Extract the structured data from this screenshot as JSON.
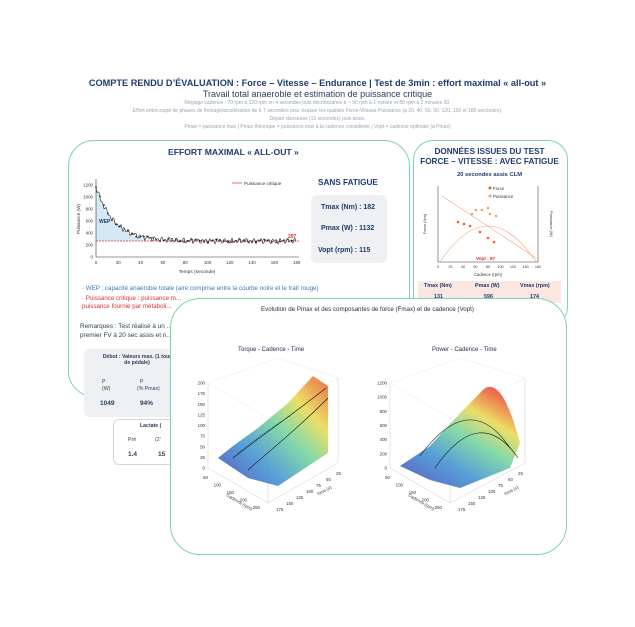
{
  "header": {
    "title": "COMPTE RENDU D’ÉVALUATION : Force – Vitesse – Endurance | Test de 3min : effort maximal « all-out »",
    "subtitle": "Travail total anaerobie et estimation de puissance critique",
    "notes": [
      "Réglage cadence : 70 rpm à 120 rpm en 4 secondes puis décroissance à ~ 90 rpm à 1 minute et 80 rpm à 2 minutes 30.",
      "Effort entrecoupé de phases de freinage/accélération de 6-7 secondes pour évaluer les qualités Force-Vitesse-Puissance (à 20, 40, 60, 90, 120, 150 et 180 secondes).",
      "Départ danseuse (15 secondes) puis assis.",
      "Pmax = puissance max | Pmax théorique = puissance max à la cadence considérée | Vopt = cadence optimale (à Pmax)"
    ]
  },
  "left_panel": {
    "title": "EFFORT MAXIMAL « ALL-OUT »",
    "condition": "SANS FATIGUE",
    "metrics": [
      "Tmax (Nm) : 182",
      "Pmax (W) : 1132",
      "Vopt (rpm) : 115"
    ],
    "chart": {
      "legend": "Puissance critique",
      "ylabel": "Puissance (W)",
      "xlabel": "Temps (seconde)",
      "wep_label": "WEP",
      "cp_value_label": "297",
      "y_ticks": [
        "0",
        "200",
        "400",
        "600",
        "800",
        "1000",
        "1200"
      ],
      "x_ticks": [
        "0",
        "20",
        "40",
        "60",
        "80",
        "100",
        "120",
        "140",
        "160",
        "180"
      ]
    },
    "wep_legend": "· WEP : capacité anaérobie totale (aire comprise entre la courbe noire et le trait rouge)",
    "pc_legend": "· Puissance critique : puissance m... puissance fournie par métaboli...",
    "remarks": "Remarques : Test réalisé à un ... premier FV à 20 sec assis et n...",
    "debut_box": {
      "header": "Début : Valeurs max. (1 tour de pédale)",
      "col1_head": "P",
      "col1_unit": "(W)",
      "col2_head": "P",
      "col2_unit": "(% Pmax)",
      "col1_value": "1049",
      "col2_value": "94%"
    },
    "lactate_box": {
      "header": "Lactate (",
      "col1": "Pré",
      "col2": "(2’ ",
      "val1": "1.4",
      "val2": "15"
    }
  },
  "right_panel": {
    "title_line1": "DONNÉES ISSUES DU TEST",
    "title_line2": "FORCE – VITESSE : AVEC FATIGUE",
    "chart_title": "20 secondes assis CLM",
    "legend": [
      "Force",
      "Puissance"
    ],
    "left_axis": "Force (Nm)",
    "right_axis": "Puissance (W)",
    "xlabel": "Cadence (rpm)",
    "vopt_label": "Vopt : 87",
    "x_ticks": [
      "0",
      "20",
      "40",
      "60",
      "80",
      "100",
      "120",
      "140",
      "160"
    ],
    "table_headers": [
      "Tmax (Nm)",
      "Pmax (W)",
      "Vmax (rpm)"
    ],
    "table_values": [
      "131",
      "596",
      "174"
    ]
  },
  "overlay": {
    "title": "Evolution de Pmax et des composantes de force (Fmax) et de cadence (Vopt)",
    "left_plot": {
      "title": "Torque - Cadence - Time",
      "z_ticks": [
        "0",
        "25",
        "50",
        "75",
        "100",
        "125",
        "150",
        "175",
        "200"
      ],
      "x_label": "Cadence (rpm)",
      "x_ticks": [
        "50",
        "100",
        "150",
        "200",
        "250"
      ],
      "y_label": "Time (s)",
      "y_ticks": [
        "25",
        "50",
        "75",
        "100",
        "125",
        "150",
        "175"
      ]
    },
    "right_plot": {
      "title": "Power - Cadence - Time",
      "z_ticks": [
        "0",
        "200",
        "400",
        "600",
        "800",
        "1000",
        "1200"
      ],
      "x_label": "Cadence (rpm)",
      "x_ticks": [
        "50",
        "100",
        "150",
        "200",
        "250"
      ],
      "y_label": "Time (s)",
      "y_ticks": [
        "25",
        "50",
        "75",
        "100",
        "125",
        "150",
        "175"
      ]
    }
  },
  "colors": {
    "navy": "#1f3b6f",
    "mint_border": "#7fd3b0",
    "critical_red": "#d93232",
    "wep_blue": "#cfe6f5",
    "force_orange": "#e8632b",
    "power_orange": "#f4a26b"
  }
}
